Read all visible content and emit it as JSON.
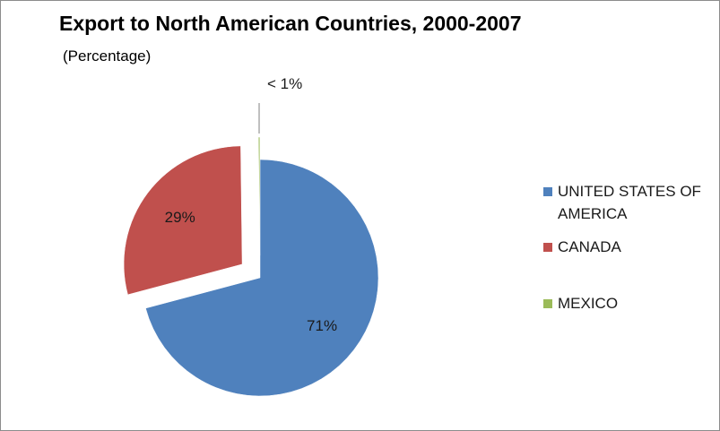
{
  "chart_data": {
    "type": "pie",
    "title": "Export to North American Countries, 2000-2007",
    "subtitle": "(Percentage)",
    "categories": [
      "UNITED STATES OF AMERICA",
      "CANADA",
      "MEXICO"
    ],
    "values": [
      71,
      29,
      0.2
    ],
    "data_labels": [
      "71%",
      "29%",
      "< 1%"
    ],
    "colors": [
      "#4F81BD",
      "#C0504D",
      "#9BBB59"
    ],
    "exploded": true,
    "legend_position": "right"
  }
}
